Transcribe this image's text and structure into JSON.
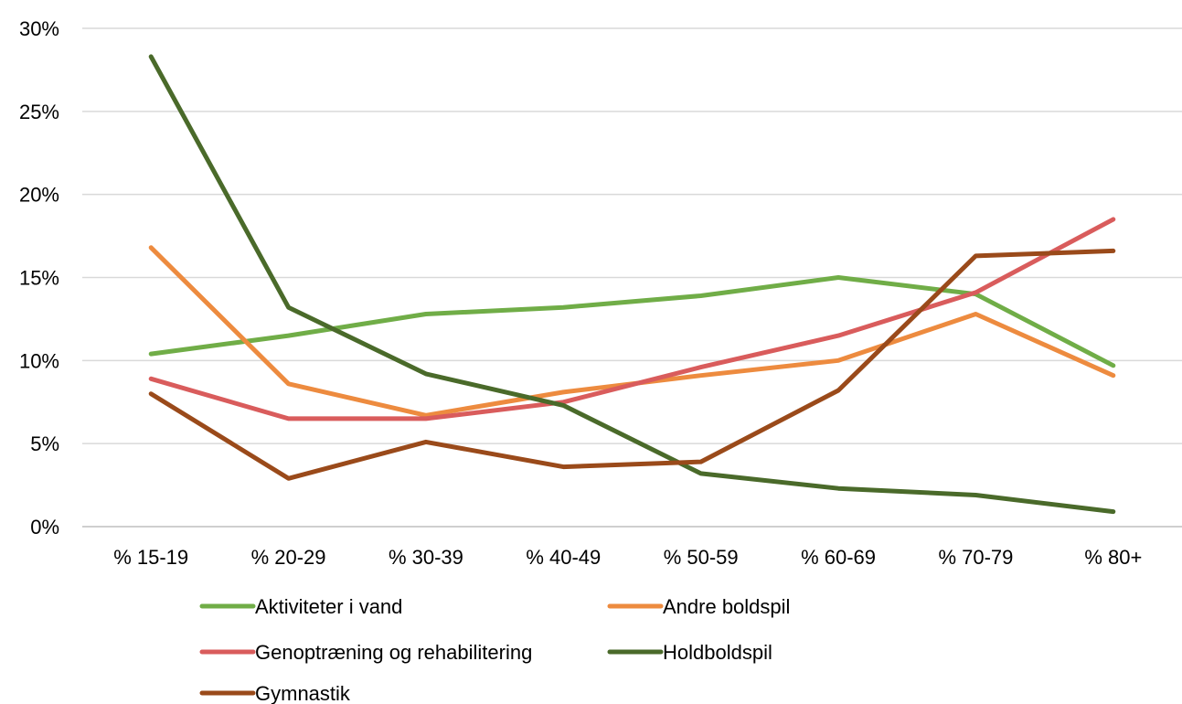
{
  "chart_data": {
    "type": "line",
    "title": "",
    "xlabel": "",
    "ylabel": "",
    "categories": [
      "% 15-19",
      "% 20-29",
      "% 30-39",
      "% 40-49",
      "% 50-59",
      "% 60-69",
      "% 70-79",
      "% 80+"
    ],
    "ylim": [
      0,
      30
    ],
    "yticks": [
      0,
      5,
      10,
      15,
      20,
      25,
      30
    ],
    "ytick_labels": [
      "0%",
      "5%",
      "10%",
      "15%",
      "20%",
      "25%",
      "30%"
    ],
    "grid": true,
    "legend_position": "bottom",
    "series": [
      {
        "name": "Aktiviteter i vand",
        "color": "#70ad47",
        "values": [
          10.4,
          11.5,
          12.8,
          13.2,
          13.9,
          15.0,
          14.0,
          9.7
        ]
      },
      {
        "name": "Andre boldspil",
        "color": "#ed8b3f",
        "values": [
          16.8,
          8.6,
          6.7,
          8.1,
          9.1,
          10.0,
          12.8,
          9.1
        ]
      },
      {
        "name": "Genoptræning og rehabilitering",
        "color": "#d95c5c",
        "values": [
          8.9,
          6.5,
          6.5,
          7.5,
          9.6,
          11.5,
          14.1,
          18.5
        ]
      },
      {
        "name": "Holdboldspil",
        "color": "#4a6a2a",
        "values": [
          28.3,
          13.2,
          9.2,
          7.3,
          3.2,
          2.3,
          1.9,
          0.9
        ]
      },
      {
        "name": "Gymnastik",
        "color": "#9a4a1a",
        "values": [
          8.0,
          2.9,
          5.1,
          3.6,
          3.9,
          8.2,
          16.3,
          16.6
        ]
      }
    ]
  }
}
